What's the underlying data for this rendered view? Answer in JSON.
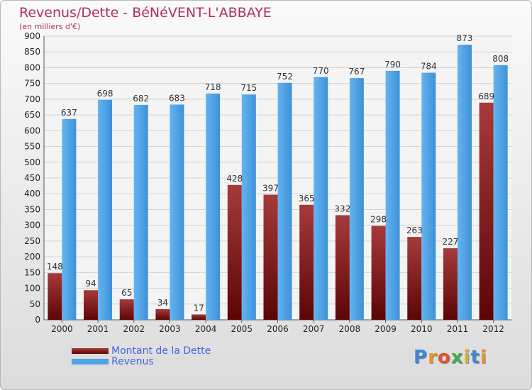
{
  "chart_data": {
    "type": "bar",
    "title": "Revenus/Dette - BéNéVENT-L'ABBAYE",
    "subtitle": "(en milliers d'€)",
    "categories": [
      "2000",
      "2001",
      "2002",
      "2003",
      "2004",
      "2005",
      "2006",
      "2007",
      "2008",
      "2009",
      "2010",
      "2011",
      "2012"
    ],
    "series": [
      {
        "name": "Montant de la Dette",
        "color": "#8b1d1d",
        "values": [
          148,
          94,
          65,
          34,
          17,
          428,
          397,
          365,
          332,
          298,
          263,
          227,
          689
        ]
      },
      {
        "name": "Revenus",
        "color": "#4fa3e6",
        "values": [
          637,
          698,
          682,
          683,
          718,
          715,
          752,
          770,
          767,
          790,
          784,
          873,
          808
        ]
      }
    ],
    "ylim": [
      0,
      900
    ],
    "yticks": [
      0,
      50,
      100,
      150,
      200,
      250,
      300,
      350,
      400,
      450,
      500,
      550,
      600,
      650,
      700,
      750,
      800,
      850,
      900
    ],
    "grid": true,
    "legend_position": "bottom-left"
  },
  "brand": {
    "letters": [
      "P",
      "r",
      "o",
      "x",
      "i",
      "t",
      "i"
    ],
    "colors": [
      "#3d87d6",
      "#e8942a",
      "#e2532e",
      "#4ba84b",
      "#c9b93a",
      "#3d87d6",
      "#e8942a"
    ]
  }
}
